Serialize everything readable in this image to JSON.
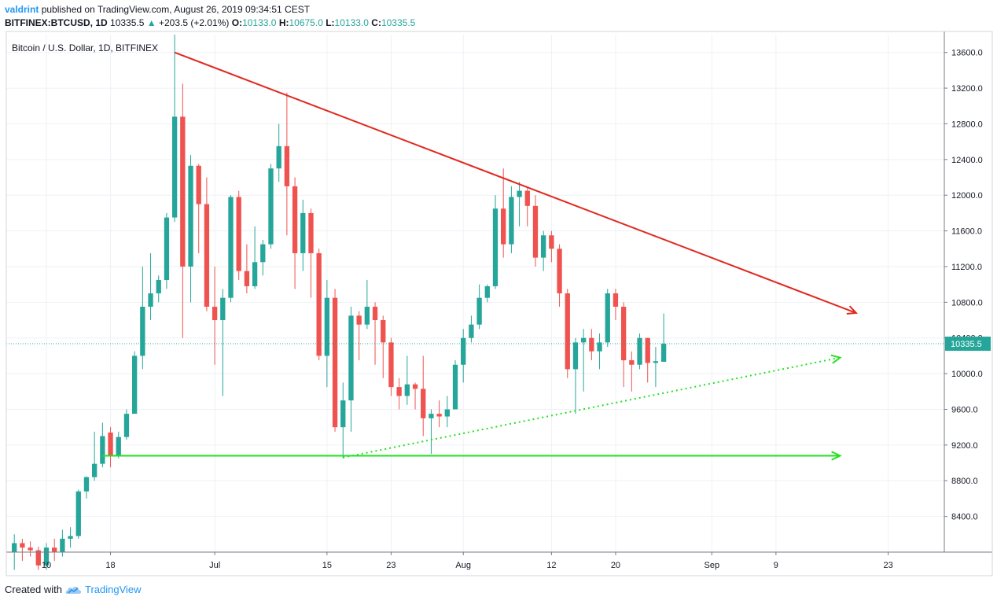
{
  "header": {
    "author": "valdrint",
    "published_text": "published on TradingView.com, August 26, 2019 09:34:51 CEST"
  },
  "ohlc": {
    "symbol": "BITFINEX:BTCUSD, 1D",
    "last": "10335.5",
    "change_arrow": "▲",
    "change": "+203.5 (+2.01%)",
    "open_label": "O:",
    "open": "10133.0",
    "high_label": "H:",
    "high": "10675.0",
    "low_label": "L:",
    "low": "10133.0",
    "close_label": "C:",
    "close": "10335.5"
  },
  "footer": {
    "created_text": "Created with",
    "brand": "TradingView"
  },
  "colors": {
    "up": "#26a69a",
    "down": "#ef5350",
    "resistance": "#e02a1f",
    "support": "#22e222",
    "price_tag": "#26a69a",
    "grid": "#eef1f5"
  },
  "chart_data": {
    "type": "candlestick",
    "title": "Bitcoin / U.S. Dollar, 1D, BITFINEX",
    "x_range": [
      "2019-06-05",
      "2019-09-30"
    ],
    "ylim": [
      8000,
      13800
    ],
    "y_ticks": [
      "13600.0",
      "13200.0",
      "12800.0",
      "12400.0",
      "12000.0",
      "11600.0",
      "11200.0",
      "10800.0",
      "10400.0",
      "10000.0",
      "9600.0",
      "9200.0",
      "8800.0",
      "8400.0"
    ],
    "x_ticks": [
      {
        "date": "2019-06-10",
        "label": "10"
      },
      {
        "date": "2019-06-18",
        "label": "18"
      },
      {
        "date": "2019-07-01",
        "label": "Jul"
      },
      {
        "date": "2019-07-15",
        "label": "15"
      },
      {
        "date": "2019-07-23",
        "label": "23"
      },
      {
        "date": "2019-08-01",
        "label": "Aug"
      },
      {
        "date": "2019-08-12",
        "label": "12"
      },
      {
        "date": "2019-08-20",
        "label": "20"
      },
      {
        "date": "2019-09-01",
        "label": "Sep"
      },
      {
        "date": "2019-09-09",
        "label": "9"
      },
      {
        "date": "2019-09-23",
        "label": "23"
      }
    ],
    "grid": true,
    "last_price_label": "10335.5",
    "last_price": 10335.5,
    "candles": [
      {
        "date": "2019-06-06",
        "o": 8000,
        "h": 8200,
        "l": 7800,
        "c": 8100
      },
      {
        "date": "2019-06-07",
        "o": 8100,
        "h": 8150,
        "l": 7900,
        "c": 8050
      },
      {
        "date": "2019-06-08",
        "o": 8050,
        "h": 8120,
        "l": 7950,
        "c": 8020
      },
      {
        "date": "2019-06-09",
        "o": 8020,
        "h": 8060,
        "l": 7800,
        "c": 7850
      },
      {
        "date": "2019-06-10",
        "o": 7850,
        "h": 8100,
        "l": 7800,
        "c": 8050
      },
      {
        "date": "2019-06-11",
        "o": 8050,
        "h": 8150,
        "l": 7900,
        "c": 8000
      },
      {
        "date": "2019-06-12",
        "o": 8000,
        "h": 8250,
        "l": 7950,
        "c": 8150
      },
      {
        "date": "2019-06-13",
        "o": 8150,
        "h": 8280,
        "l": 8050,
        "c": 8180
      },
      {
        "date": "2019-06-14",
        "o": 8180,
        "h": 8700,
        "l": 8150,
        "c": 8680
      },
      {
        "date": "2019-06-15",
        "o": 8680,
        "h": 8850,
        "l": 8600,
        "c": 8840
      },
      {
        "date": "2019-06-16",
        "o": 8840,
        "h": 9350,
        "l": 8800,
        "c": 8990
      },
      {
        "date": "2019-06-17",
        "o": 8990,
        "h": 9450,
        "l": 8950,
        "c": 9300
      },
      {
        "date": "2019-06-18",
        "o": 9340,
        "h": 9400,
        "l": 8950,
        "c": 9080
      },
      {
        "date": "2019-06-19",
        "o": 9080,
        "h": 9350,
        "l": 9050,
        "c": 9290
      },
      {
        "date": "2019-06-20",
        "o": 9290,
        "h": 9600,
        "l": 9260,
        "c": 9550
      },
      {
        "date": "2019-06-21",
        "o": 9550,
        "h": 10250,
        "l": 9550,
        "c": 10200
      },
      {
        "date": "2019-06-22",
        "o": 10200,
        "h": 11200,
        "l": 10050,
        "c": 10750
      },
      {
        "date": "2019-06-23",
        "o": 10750,
        "h": 11350,
        "l": 10600,
        "c": 10900
      },
      {
        "date": "2019-06-24",
        "o": 10900,
        "h": 11100,
        "l": 10800,
        "c": 11050
      },
      {
        "date": "2019-06-25",
        "o": 11050,
        "h": 11800,
        "l": 10950,
        "c": 11750
      },
      {
        "date": "2019-06-26",
        "o": 11750,
        "h": 13800,
        "l": 11700,
        "c": 12880
      },
      {
        "date": "2019-06-27",
        "o": 12880,
        "h": 13250,
        "l": 10400,
        "c": 11200
      },
      {
        "date": "2019-06-28",
        "o": 11200,
        "h": 12450,
        "l": 10800,
        "c": 12330
      },
      {
        "date": "2019-06-29",
        "o": 12330,
        "h": 12350,
        "l": 11350,
        "c": 11900
      },
      {
        "date": "2019-06-30",
        "o": 11900,
        "h": 12200,
        "l": 10700,
        "c": 10750
      },
      {
        "date": "2019-07-01",
        "o": 10750,
        "h": 11200,
        "l": 10100,
        "c": 10600
      },
      {
        "date": "2019-07-02",
        "o": 10600,
        "h": 10950,
        "l": 9750,
        "c": 10850
      },
      {
        "date": "2019-07-03",
        "o": 10850,
        "h": 12000,
        "l": 10800,
        "c": 11980
      },
      {
        "date": "2019-07-04",
        "o": 11980,
        "h": 12050,
        "l": 11050,
        "c": 11150
      },
      {
        "date": "2019-07-05",
        "o": 11150,
        "h": 11450,
        "l": 10900,
        "c": 10980
      },
      {
        "date": "2019-07-06",
        "o": 10980,
        "h": 11650,
        "l": 10950,
        "c": 11250
      },
      {
        "date": "2019-07-07",
        "o": 11250,
        "h": 11500,
        "l": 11100,
        "c": 11450
      },
      {
        "date": "2019-07-08",
        "o": 11450,
        "h": 12350,
        "l": 11400,
        "c": 12300
      },
      {
        "date": "2019-07-09",
        "o": 12300,
        "h": 12800,
        "l": 12150,
        "c": 12550
      },
      {
        "date": "2019-07-10",
        "o": 12550,
        "h": 13150,
        "l": 11550,
        "c": 12100
      },
      {
        "date": "2019-07-11",
        "o": 12100,
        "h": 12200,
        "l": 10950,
        "c": 11350
      },
      {
        "date": "2019-07-12",
        "o": 11350,
        "h": 11950,
        "l": 11150,
        "c": 11800
      },
      {
        "date": "2019-07-13",
        "o": 11800,
        "h": 11850,
        "l": 10850,
        "c": 11350
      },
      {
        "date": "2019-07-14",
        "o": 11350,
        "h": 11400,
        "l": 10150,
        "c": 10200
      },
      {
        "date": "2019-07-15",
        "o": 10200,
        "h": 11050,
        "l": 9850,
        "c": 10850
      },
      {
        "date": "2019-07-16",
        "o": 10850,
        "h": 10950,
        "l": 9350,
        "c": 9400
      },
      {
        "date": "2019-07-17",
        "o": 9400,
        "h": 9900,
        "l": 9050,
        "c": 9700
      },
      {
        "date": "2019-07-18",
        "o": 9700,
        "h": 10750,
        "l": 9350,
        "c": 10650
      },
      {
        "date": "2019-07-19",
        "o": 10650,
        "h": 10700,
        "l": 10150,
        "c": 10550
      },
      {
        "date": "2019-07-20",
        "o": 10550,
        "h": 11050,
        "l": 10500,
        "c": 10750
      },
      {
        "date": "2019-07-21",
        "o": 10750,
        "h": 10800,
        "l": 10100,
        "c": 10600
      },
      {
        "date": "2019-07-22",
        "o": 10600,
        "h": 10650,
        "l": 9950,
        "c": 10350
      },
      {
        "date": "2019-07-23",
        "o": 10350,
        "h": 10400,
        "l": 9750,
        "c": 9850
      },
      {
        "date": "2019-07-24",
        "o": 9850,
        "h": 9950,
        "l": 9600,
        "c": 9750
      },
      {
        "date": "2019-07-25",
        "o": 9750,
        "h": 10200,
        "l": 9650,
        "c": 9880
      },
      {
        "date": "2019-07-26",
        "o": 9880,
        "h": 9900,
        "l": 9600,
        "c": 9830
      },
      {
        "date": "2019-07-27",
        "o": 9830,
        "h": 10200,
        "l": 9300,
        "c": 9500
      },
      {
        "date": "2019-07-28",
        "o": 9500,
        "h": 9600,
        "l": 9100,
        "c": 9550
      },
      {
        "date": "2019-07-29",
        "o": 9550,
        "h": 9700,
        "l": 9400,
        "c": 9520
      },
      {
        "date": "2019-07-30",
        "o": 9520,
        "h": 9750,
        "l": 9400,
        "c": 9600
      },
      {
        "date": "2019-07-31",
        "o": 9600,
        "h": 10150,
        "l": 9600,
        "c": 10100
      },
      {
        "date": "2019-08-01",
        "o": 10100,
        "h": 10500,
        "l": 9900,
        "c": 10400
      },
      {
        "date": "2019-08-02",
        "o": 10400,
        "h": 10650,
        "l": 10350,
        "c": 10550
      },
      {
        "date": "2019-08-03",
        "o": 10550,
        "h": 11000,
        "l": 10500,
        "c": 10850
      },
      {
        "date": "2019-08-04",
        "o": 10850,
        "h": 11000,
        "l": 10800,
        "c": 10980
      },
      {
        "date": "2019-08-05",
        "o": 10980,
        "h": 12000,
        "l": 10950,
        "c": 11850
      },
      {
        "date": "2019-08-06",
        "o": 11850,
        "h": 12300,
        "l": 11300,
        "c": 11450
      },
      {
        "date": "2019-08-07",
        "o": 11450,
        "h": 12100,
        "l": 11350,
        "c": 11980
      },
      {
        "date": "2019-08-08",
        "o": 11980,
        "h": 12150,
        "l": 11650,
        "c": 12050
      },
      {
        "date": "2019-08-09",
        "o": 12050,
        "h": 12100,
        "l": 11650,
        "c": 11880
      },
      {
        "date": "2019-08-10",
        "o": 11880,
        "h": 12000,
        "l": 11200,
        "c": 11300
      },
      {
        "date": "2019-08-11",
        "o": 11300,
        "h": 11600,
        "l": 11150,
        "c": 11550
      },
      {
        "date": "2019-08-12",
        "o": 11550,
        "h": 11600,
        "l": 11250,
        "c": 11400
      },
      {
        "date": "2019-08-13",
        "o": 11400,
        "h": 11450,
        "l": 10750,
        "c": 10900
      },
      {
        "date": "2019-08-14",
        "o": 10900,
        "h": 10950,
        "l": 9950,
        "c": 10050
      },
      {
        "date": "2019-08-15",
        "o": 10050,
        "h": 10400,
        "l": 9550,
        "c": 10350
      },
      {
        "date": "2019-08-16",
        "o": 10350,
        "h": 10500,
        "l": 9800,
        "c": 10400
      },
      {
        "date": "2019-08-17",
        "o": 10400,
        "h": 10500,
        "l": 10150,
        "c": 10250
      },
      {
        "date": "2019-08-18",
        "o": 10250,
        "h": 10450,
        "l": 10050,
        "c": 10350
      },
      {
        "date": "2019-08-19",
        "o": 10350,
        "h": 10950,
        "l": 10300,
        "c": 10900
      },
      {
        "date": "2019-08-20",
        "o": 10900,
        "h": 10950,
        "l": 10600,
        "c": 10750
      },
      {
        "date": "2019-08-21",
        "o": 10750,
        "h": 10800,
        "l": 9850,
        "c": 10150
      },
      {
        "date": "2019-08-22",
        "o": 10150,
        "h": 10250,
        "l": 9800,
        "c": 10100
      },
      {
        "date": "2019-08-23",
        "o": 10100,
        "h": 10450,
        "l": 10050,
        "c": 10400
      },
      {
        "date": "2019-08-24",
        "o": 10400,
        "h": 10400,
        "l": 9900,
        "c": 10120
      },
      {
        "date": "2019-08-25",
        "o": 10120,
        "h": 10300,
        "l": 9850,
        "c": 10140
      },
      {
        "date": "2019-08-26",
        "o": 10133,
        "h": 10675,
        "l": 10133,
        "c": 10335.5
      }
    ],
    "annotations": [
      {
        "type": "trend-line",
        "name": "descending resistance",
        "color": "#e02a1f",
        "style": "solid",
        "arrow": true,
        "from": {
          "date": "2019-06-26",
          "price": 13600
        },
        "to": {
          "date": "2019-09-19",
          "price": 10680
        }
      },
      {
        "type": "trend-line",
        "name": "ascending support",
        "color": "#22e222",
        "style": "dotted",
        "arrow": true,
        "from": {
          "date": "2019-07-17",
          "price": 9060
        },
        "to": {
          "date": "2019-09-17",
          "price": 10180
        }
      },
      {
        "type": "horizontal-line",
        "name": "horizontal support",
        "color": "#22e222",
        "style": "solid",
        "arrow": true,
        "from": {
          "date": "2019-06-17",
          "price": 9080
        },
        "to": {
          "date": "2019-09-17",
          "price": 9080
        }
      }
    ]
  }
}
